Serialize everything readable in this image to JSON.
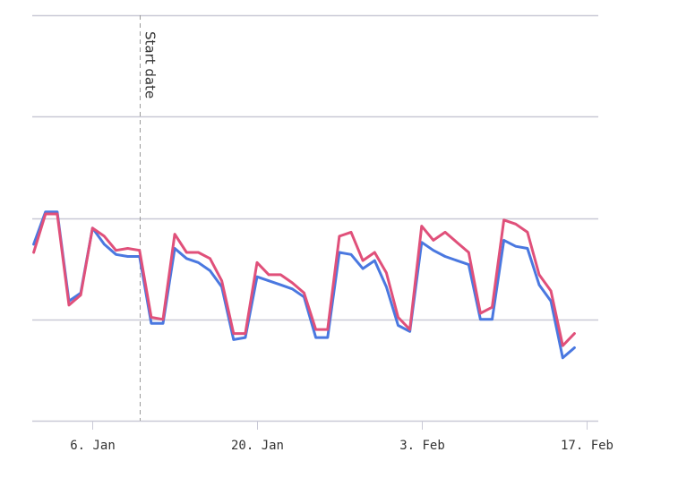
{
  "chart_data": {
    "type": "line",
    "title": "",
    "xlabel": "",
    "ylabel": "",
    "x_tick_labels": [
      {
        "date": "2020-01-06",
        "label": "6. Jan"
      },
      {
        "date": "2020-01-20",
        "label": "20. Jan"
      },
      {
        "date": "2020-02-03",
        "label": "3. Feb"
      },
      {
        "date": "2020-02-17",
        "label": "17. Feb"
      }
    ],
    "y_gridlines": 5,
    "y_tick_labels_shown": false,
    "grid": true,
    "legend": "none",
    "annotation": {
      "label": "Start date",
      "date": "2020-01-10",
      "style": "dashed vertical line"
    },
    "x_range": [
      "2020-01-01",
      "2020-02-17"
    ],
    "series": [
      {
        "color": "#4a78e0",
        "values": [
          [
            "2020-01-01",
            3.37
          ],
          [
            "2020-01-02",
            3.53
          ],
          [
            "2020-01-03",
            3.53
          ],
          [
            "2020-01-04",
            3.09
          ],
          [
            "2020-01-05",
            3.13
          ],
          [
            "2020-01-06",
            3.45
          ],
          [
            "2020-01-07",
            3.37
          ],
          [
            "2020-01-08",
            3.32
          ],
          [
            "2020-01-09",
            3.31
          ],
          [
            "2020-01-10",
            3.31
          ],
          [
            "2020-01-11",
            2.98
          ],
          [
            "2020-01-12",
            2.98
          ],
          [
            "2020-01-13",
            3.35
          ],
          [
            "2020-01-14",
            3.3
          ],
          [
            "2020-01-15",
            3.28
          ],
          [
            "2020-01-16",
            3.24
          ],
          [
            "2020-01-17",
            3.16
          ],
          [
            "2020-01-18",
            2.9
          ],
          [
            "2020-01-19",
            2.91
          ],
          [
            "2020-01-20",
            3.21
          ],
          [
            "2020-01-21",
            3.19
          ],
          [
            "2020-01-22",
            3.17
          ],
          [
            "2020-01-23",
            3.15
          ],
          [
            "2020-01-24",
            3.11
          ],
          [
            "2020-01-25",
            2.91
          ],
          [
            "2020-01-26",
            2.91
          ],
          [
            "2020-01-27",
            3.33
          ],
          [
            "2020-01-28",
            3.32
          ],
          [
            "2020-01-29",
            3.25
          ],
          [
            "2020-01-30",
            3.29
          ],
          [
            "2020-01-31",
            3.16
          ],
          [
            "2020-02-01",
            2.97
          ],
          [
            "2020-02-02",
            2.94
          ],
          [
            "2020-02-03",
            3.38
          ],
          [
            "2020-02-04",
            3.34
          ],
          [
            "2020-02-05",
            3.31
          ],
          [
            "2020-02-06",
            3.29
          ],
          [
            "2020-02-07",
            3.27
          ],
          [
            "2020-02-08",
            3
          ],
          [
            "2020-02-09",
            3
          ],
          [
            "2020-02-10",
            3.39
          ],
          [
            "2020-02-11",
            3.36
          ],
          [
            "2020-02-12",
            3.35
          ],
          [
            "2020-02-13",
            3.17
          ],
          [
            "2020-02-14",
            3.09
          ],
          [
            "2020-02-15",
            2.81
          ],
          [
            "2020-02-16",
            2.86
          ]
        ]
      },
      {
        "color": "#e0507a",
        "values": [
          [
            "2020-01-01",
            3.33
          ],
          [
            "2020-01-02",
            3.52
          ],
          [
            "2020-01-03",
            3.52
          ],
          [
            "2020-01-04",
            3.07
          ],
          [
            "2020-01-05",
            3.12
          ],
          [
            "2020-01-06",
            3.45
          ],
          [
            "2020-01-07",
            3.41
          ],
          [
            "2020-01-08",
            3.34
          ],
          [
            "2020-01-09",
            3.35
          ],
          [
            "2020-01-10",
            3.34
          ],
          [
            "2020-01-11",
            3.01
          ],
          [
            "2020-01-12",
            3
          ],
          [
            "2020-01-13",
            3.42
          ],
          [
            "2020-01-14",
            3.33
          ],
          [
            "2020-01-15",
            3.33
          ],
          [
            "2020-01-16",
            3.3
          ],
          [
            "2020-01-17",
            3.19
          ],
          [
            "2020-01-18",
            2.93
          ],
          [
            "2020-01-19",
            2.93
          ],
          [
            "2020-01-20",
            3.28
          ],
          [
            "2020-01-21",
            3.22
          ],
          [
            "2020-01-22",
            3.22
          ],
          [
            "2020-01-23",
            3.18
          ],
          [
            "2020-01-24",
            3.13
          ],
          [
            "2020-01-25",
            2.95
          ],
          [
            "2020-01-26",
            2.95
          ],
          [
            "2020-01-27",
            3.41
          ],
          [
            "2020-01-28",
            3.43
          ],
          [
            "2020-01-29",
            3.29
          ],
          [
            "2020-01-30",
            3.33
          ],
          [
            "2020-01-31",
            3.23
          ],
          [
            "2020-02-01",
            3.01
          ],
          [
            "2020-02-02",
            2.95
          ],
          [
            "2020-02-03",
            3.46
          ],
          [
            "2020-02-04",
            3.39
          ],
          [
            "2020-02-05",
            3.43
          ],
          [
            "2020-02-06",
            3.38
          ],
          [
            "2020-02-07",
            3.33
          ],
          [
            "2020-02-08",
            3.03
          ],
          [
            "2020-02-09",
            3.06
          ],
          [
            "2020-02-10",
            3.49
          ],
          [
            "2020-02-11",
            3.47
          ],
          [
            "2020-02-12",
            3.43
          ],
          [
            "2020-02-13",
            3.22
          ],
          [
            "2020-02-14",
            3.14
          ],
          [
            "2020-02-15",
            2.87
          ],
          [
            "2020-02-16",
            2.93
          ]
        ]
      }
    ]
  }
}
